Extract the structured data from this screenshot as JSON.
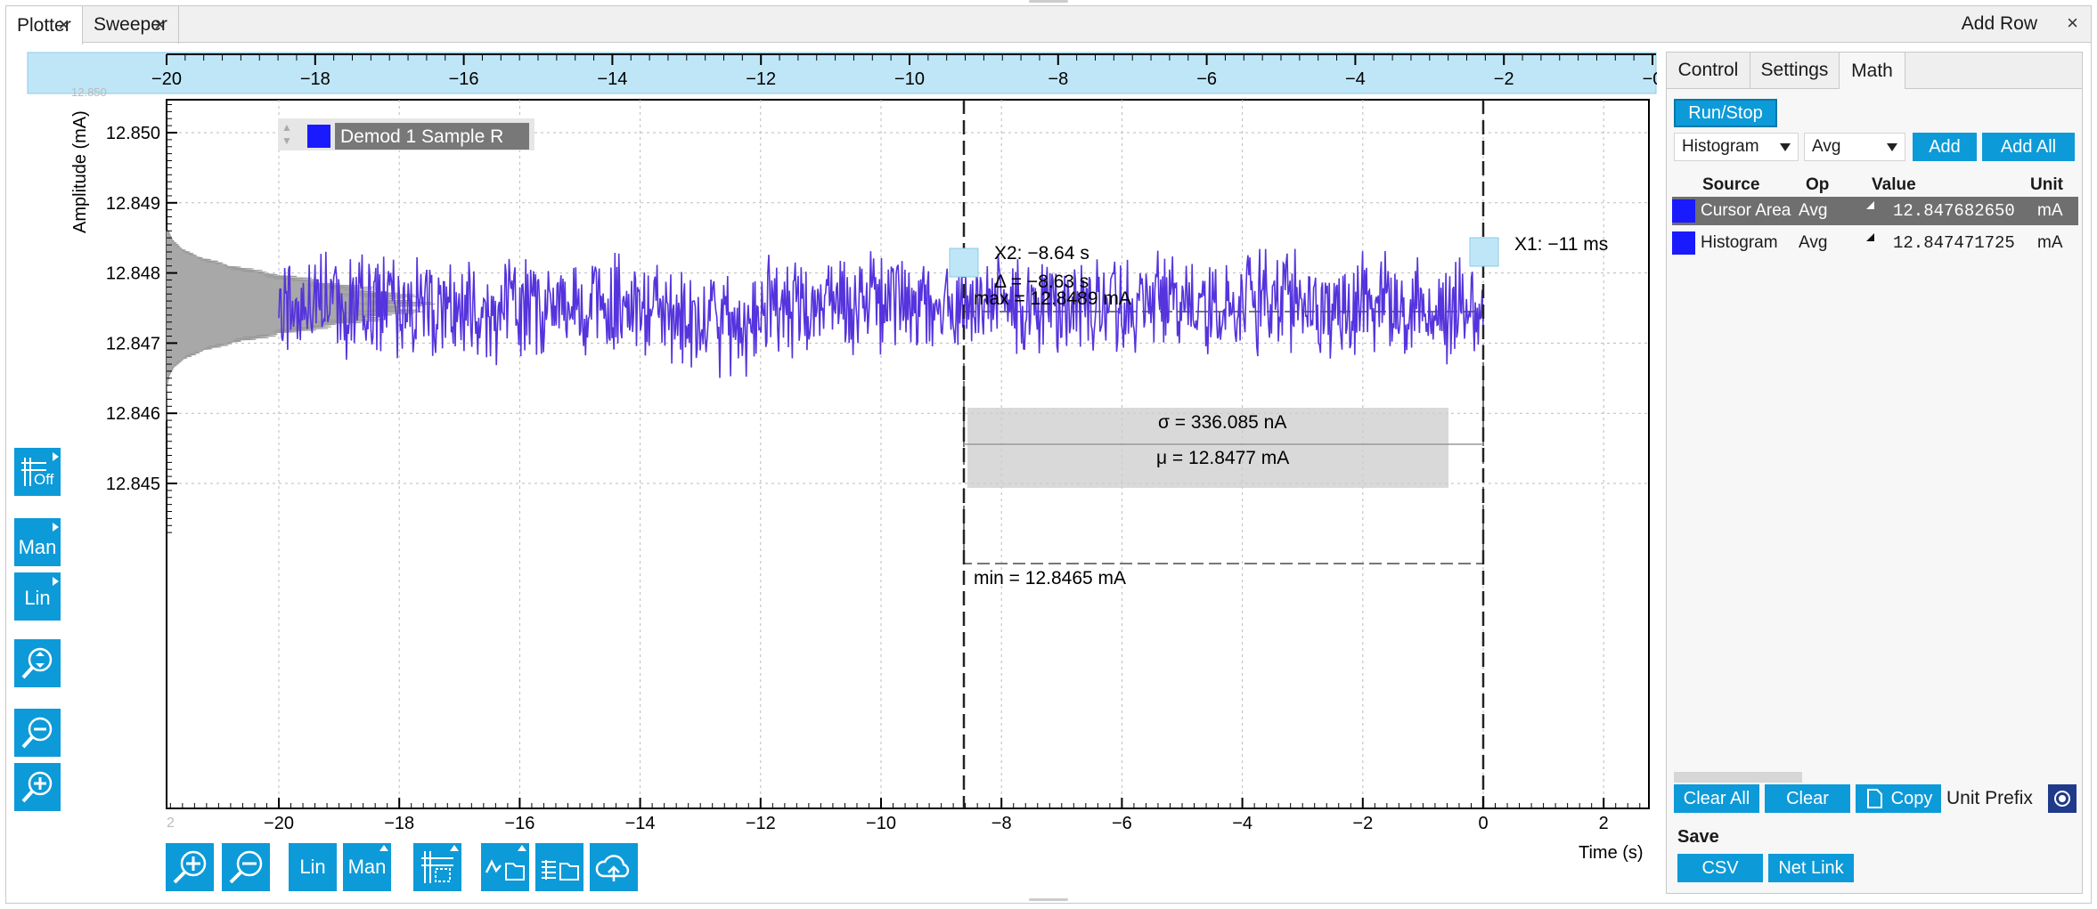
{
  "tabs": [
    {
      "label": "Plotter",
      "active": true
    },
    {
      "label": "Sweeper",
      "active": false
    }
  ],
  "add_row": "Add Row",
  "close_glyph": "×",
  "toolbar_left": [
    {
      "name": "grid-off",
      "label": "Off"
    },
    {
      "name": "y-range-mode",
      "label": "Man"
    },
    {
      "name": "y-scale",
      "label": "Lin"
    },
    {
      "name": "zoom-fit-y",
      "label": ""
    },
    {
      "name": "zoom-out-y",
      "label": ""
    },
    {
      "name": "zoom-in-y",
      "label": ""
    }
  ],
  "toolbar_bottom": {
    "lin_label": "Lin",
    "man_label": "Man"
  },
  "legend": {
    "label": "Demod 1 Sample R",
    "color": "#1a1aff"
  },
  "plot": {
    "ylabel": "Amplitude (mA)",
    "xlabel": "Time (s)",
    "y_ticks": [
      "12.850",
      "12.849",
      "12.848",
      "12.847",
      "12.846",
      "12.845"
    ],
    "x_ticks": [
      "−20",
      "−18",
      "−16",
      "−14",
      "−12",
      "−10",
      "−8",
      "−6",
      "−4",
      "−2",
      "0",
      "2"
    ],
    "top_x_ticks": [
      "−20",
      "−18",
      "−16",
      "−14",
      "−12",
      "−10",
      "−8",
      "−6",
      "−4",
      "−2",
      "−0"
    ],
    "corner_top": "12.850",
    "corner_bottom": "2"
  },
  "cursors": {
    "x2_label": "X2: −8.64 s",
    "delta_label": "Δ = −8.63 s",
    "x1_label": "X1: −11 ms",
    "max_label": "max = 12.8489 mA",
    "min_label": "min = 12.8465 mA",
    "sigma_label": "σ = 336.085 nA",
    "mu_label": "μ = 12.8477 mA"
  },
  "chart_data": {
    "type": "line",
    "series": [
      {
        "name": "Demod 1 Sample R",
        "color": "#5533dd"
      }
    ],
    "x_range": [
      -20,
      2
    ],
    "ylim": [
      12.8442,
      12.8506
    ],
    "xlabel": "Time (s)",
    "ylabel": "Amplitude (mA)",
    "annotations": {
      "cursor_x2": -8.64,
      "cursor_x1": -0.011,
      "max": 12.8489,
      "min": 12.8465,
      "mean": 12.8477,
      "sigma_nA": 336.085
    },
    "histogram_overlay": true
  },
  "math": {
    "tabs": [
      "Control",
      "Settings",
      "Math"
    ],
    "run_stop": "Run/Stop",
    "source_select": "Histogram",
    "op_select": "Avg",
    "add": "Add",
    "add_all": "Add All",
    "headers": {
      "source": "Source",
      "op": "Op",
      "value": "Value",
      "unit": "Unit"
    },
    "rows": [
      {
        "source": "Cursor Area",
        "op": "Avg",
        "value": "12.847682650",
        "unit": "mA",
        "color": "#1a1aff",
        "selected": true
      },
      {
        "source": "Histogram",
        "op": "Avg",
        "value": "12.847471725",
        "unit": "mA",
        "color": "#1a1aff",
        "selected": false
      }
    ],
    "clear_all": "Clear All",
    "clear": "Clear",
    "copy": "Copy",
    "unit_prefix": "Unit Prefix",
    "save": "Save",
    "csv": "CSV",
    "net_link": "Net Link"
  }
}
